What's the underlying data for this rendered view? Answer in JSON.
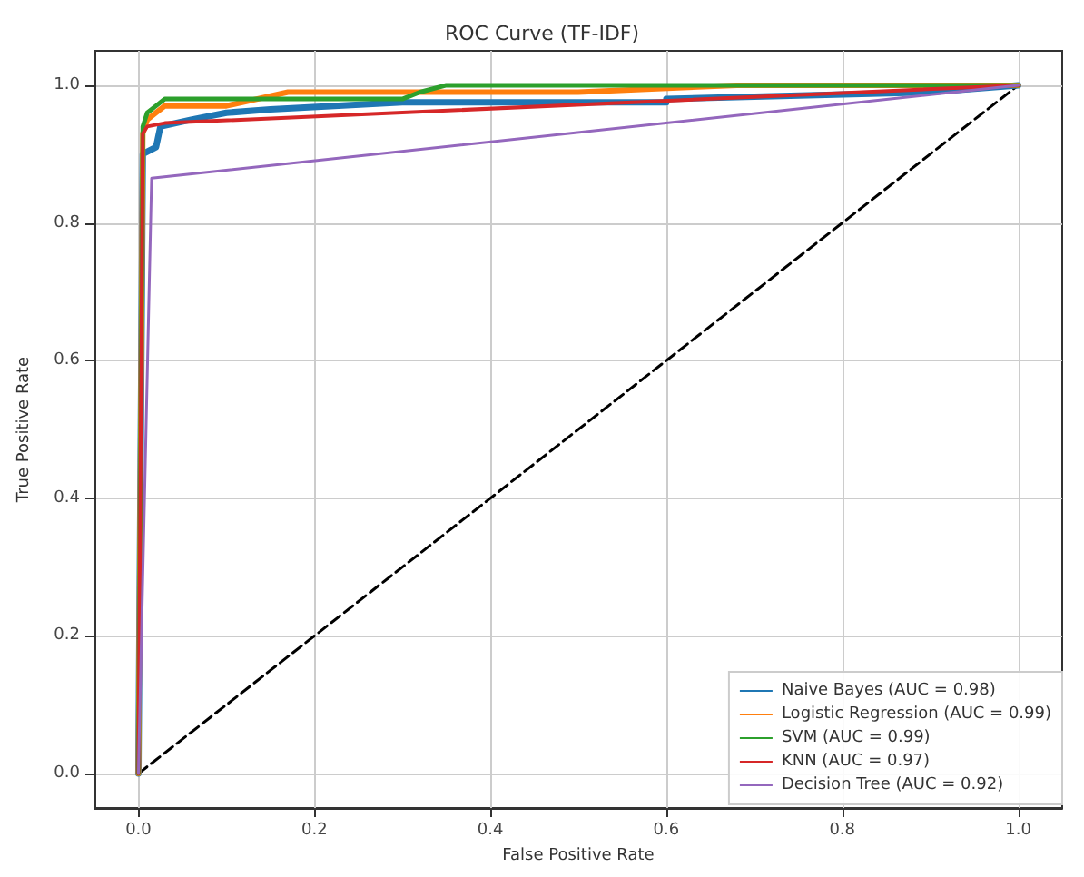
{
  "chart_data": {
    "type": "line",
    "title": "ROC Curve (TF-IDF)",
    "xlabel": "False Positive Rate",
    "ylabel": "True Positive Rate",
    "xlim": [
      -0.05,
      1.05
    ],
    "ylim": [
      -0.05,
      1.05
    ],
    "xticks": [
      {
        "value": 0,
        "label": "0.0"
      },
      {
        "value": 0.2,
        "label": "0.2"
      },
      {
        "value": 0.4,
        "label": "0.4"
      },
      {
        "value": 0.6,
        "label": "0.6"
      },
      {
        "value": 0.8,
        "label": "0.8"
      },
      {
        "value": 1,
        "label": "1.0"
      }
    ],
    "yticks": [
      {
        "value": 0,
        "label": "0.0"
      },
      {
        "value": 0.2,
        "label": "0.2"
      },
      {
        "value": 0.4,
        "label": "0.4"
      },
      {
        "value": 0.6,
        "label": "0.6"
      },
      {
        "value": 0.8,
        "label": "0.8"
      },
      {
        "value": 1,
        "label": "1.0"
      }
    ],
    "grid": true,
    "legend": "bottom right",
    "marker": "none",
    "series": [
      {
        "name": "Naive Bayes (AUC = 0.98)",
        "color": "#1f77b4",
        "x": [
          0,
          0.005,
          0.02,
          0.025,
          0.06,
          0.1,
          0.15,
          0.3,
          0.6,
          0.6,
          0.9,
          1
        ],
        "values": [
          0,
          0.9,
          0.91,
          0.94,
          0.95,
          0.96,
          0.965,
          0.975,
          0.975,
          0.98,
          0.99,
          1
        ]
      },
      {
        "name": "Logistic Regression (AUC = 0.99)",
        "color": "#ff7f0e",
        "x": [
          0,
          0.005,
          0.01,
          0.02,
          0.03,
          0.1,
          0.17,
          0.5,
          0.68,
          1
        ],
        "values": [
          0,
          0.93,
          0.95,
          0.96,
          0.97,
          0.97,
          0.99,
          0.99,
          1,
          1
        ]
      },
      {
        "name": "SVM (AUC = 0.99)",
        "color": "#2ca02c",
        "x": [
          0,
          0.005,
          0.01,
          0.02,
          0.03,
          0.3,
          0.32,
          0.35,
          1
        ],
        "values": [
          0,
          0.94,
          0.96,
          0.97,
          0.98,
          0.98,
          0.99,
          1,
          1
        ]
      },
      {
        "name": "KNN (AUC = 0.97)",
        "color": "#d62728",
        "x": [
          0,
          0.005,
          0.01,
          0.03,
          1
        ],
        "values": [
          0,
          0.93,
          0.94,
          0.945,
          1
        ]
      },
      {
        "name": "Decision Tree (AUC = 0.92)",
        "color": "#9467bd",
        "x": [
          0,
          0.015,
          1
        ],
        "values": [
          0,
          0.865,
          1
        ]
      },
      {
        "color": "#000000",
        "line_style": "dashed",
        "x": [
          0,
          1
        ],
        "values": [
          0,
          1
        ]
      }
    ]
  }
}
